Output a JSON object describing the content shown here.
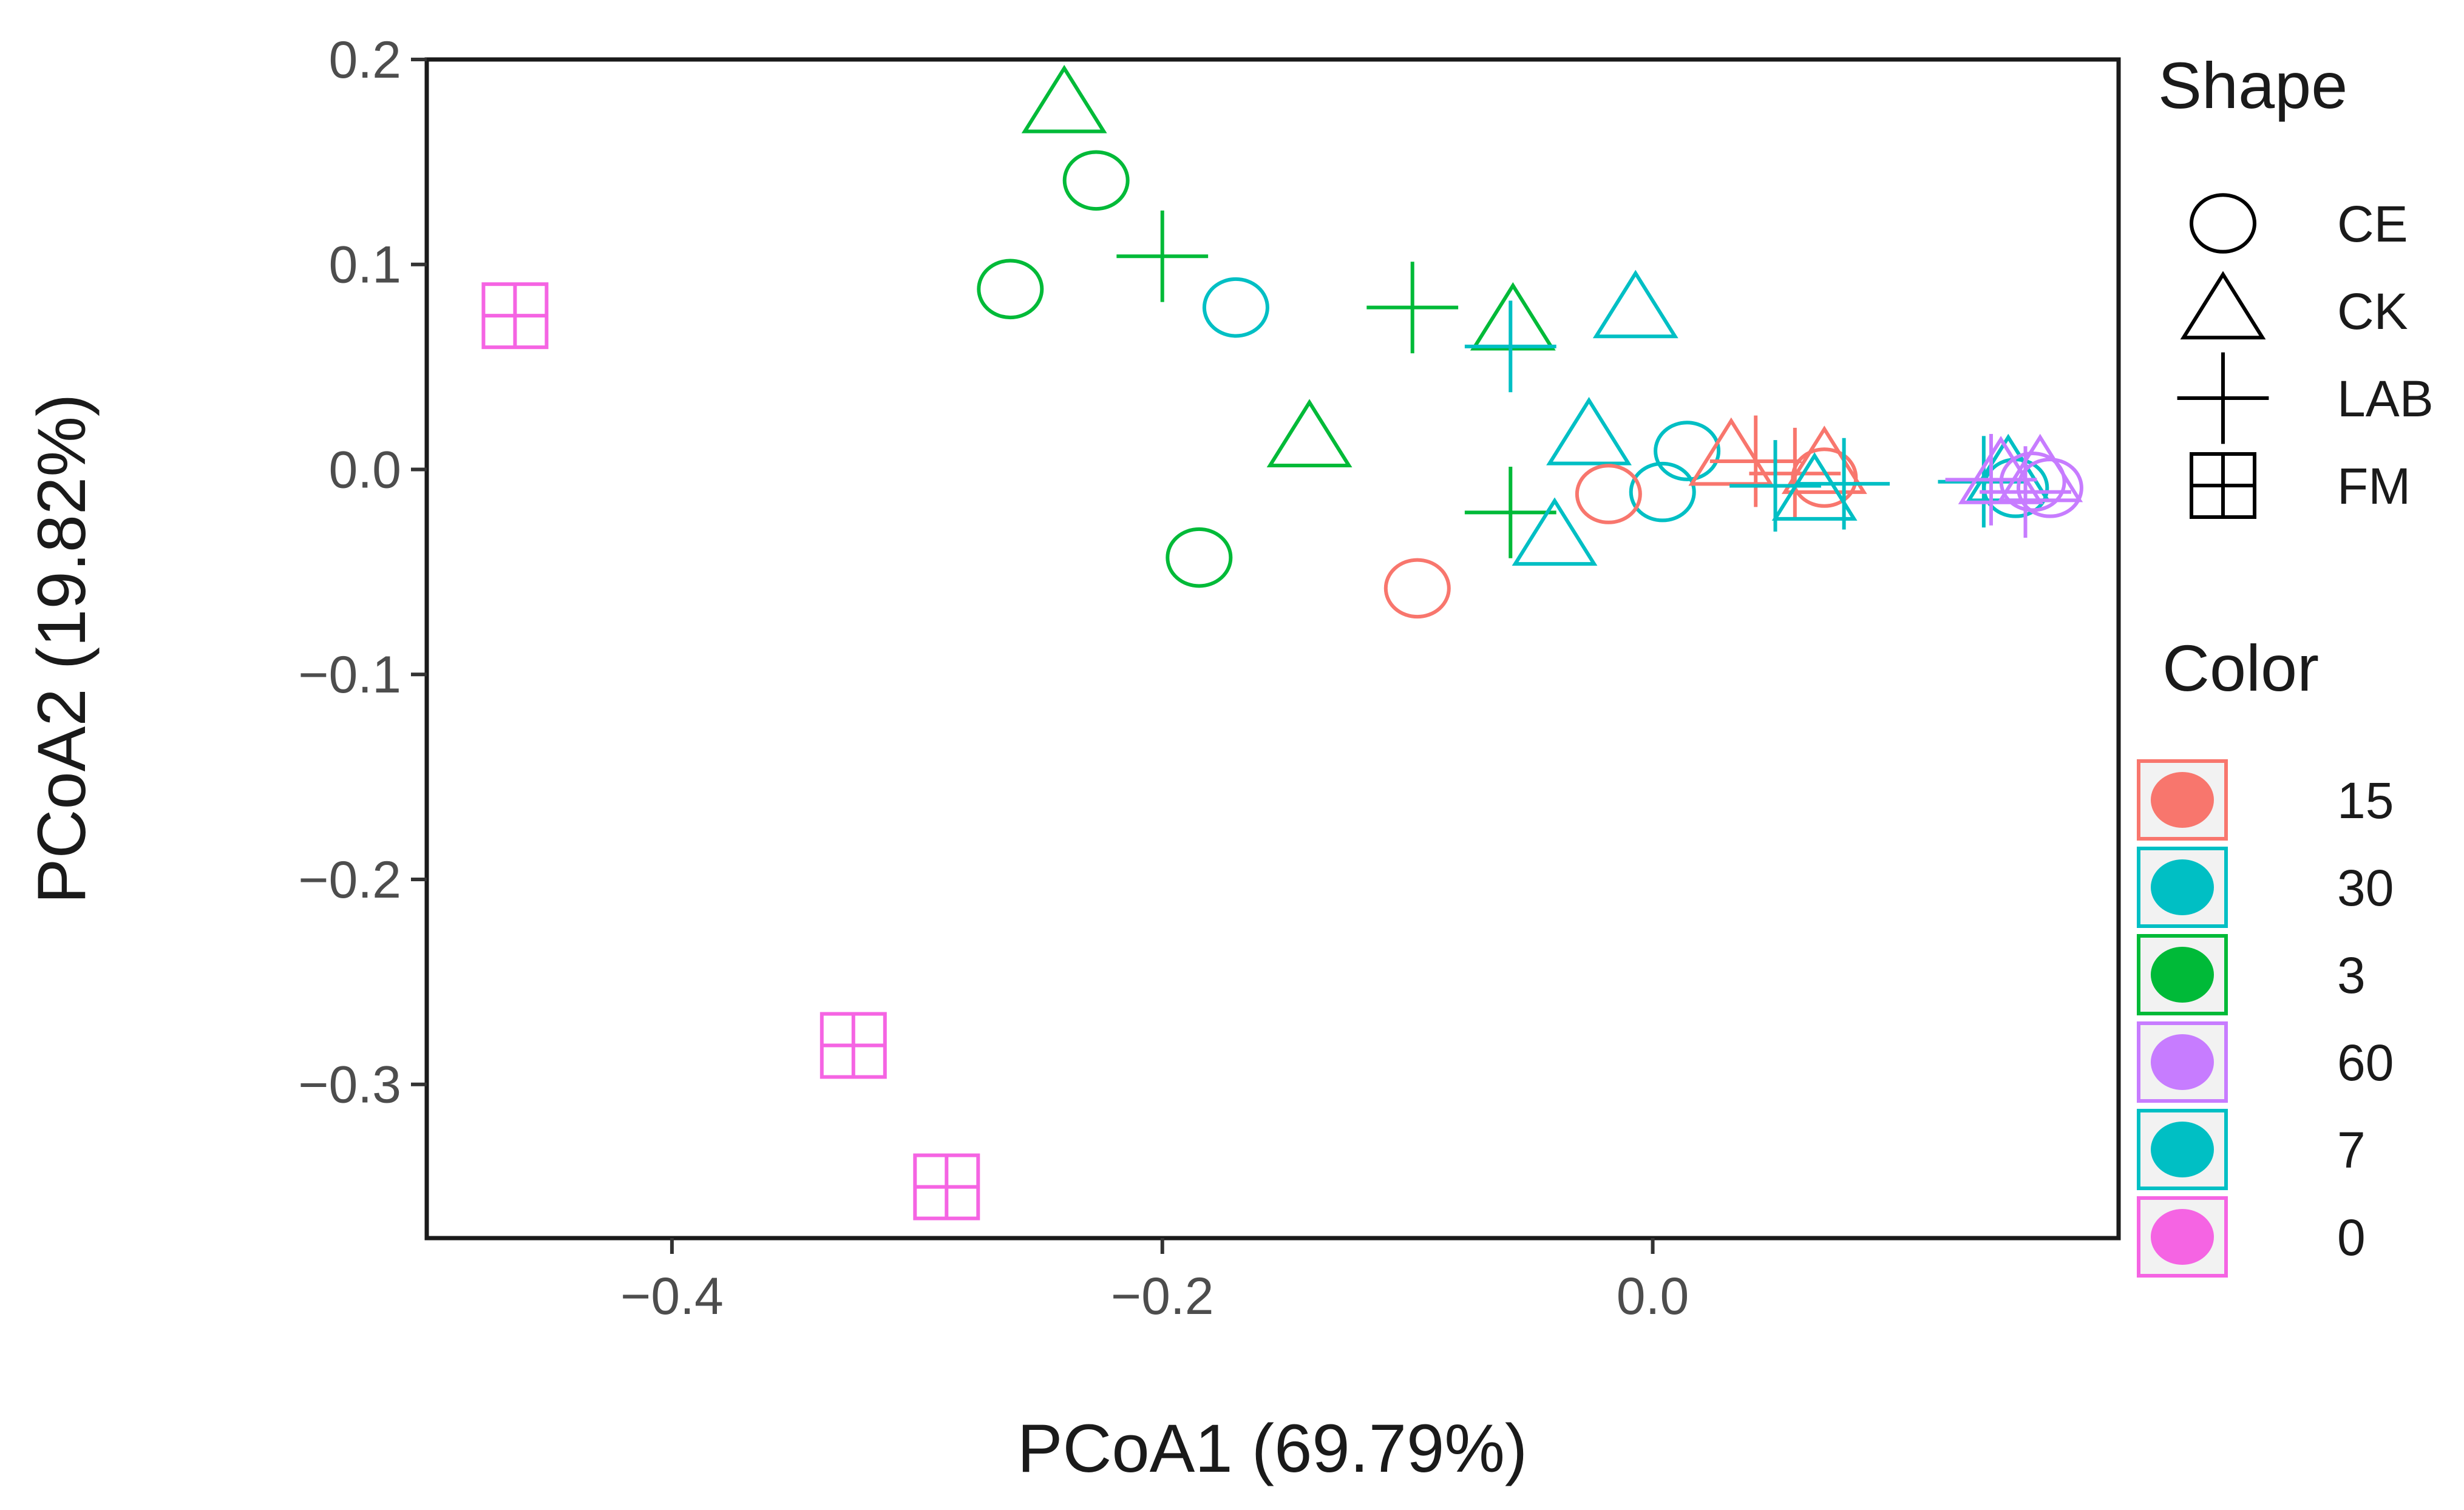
{
  "chart_data": {
    "type": "scatter",
    "title": "",
    "xlabel": "PCoA1 (69.79%)",
    "ylabel": "PCoA2 (19.82%)",
    "xlim": [
      -0.5,
      0.19
    ],
    "ylim": [
      -0.375,
      0.2
    ],
    "xticks": [
      -0.4,
      -0.2,
      0.0
    ],
    "xtick_labels": [
      "−0.4",
      "−0.2",
      "0.0"
    ],
    "yticks": [
      0.2,
      0.1,
      0.0,
      -0.1,
      -0.2,
      -0.3
    ],
    "ytick_labels": [
      "0.2",
      "0.1",
      "0.0",
      "−0.1",
      "−0.2",
      "−0.3"
    ],
    "grid": false,
    "shape_legend": {
      "title": "Shape",
      "entries": [
        {
          "label": "CE",
          "shape": "circle"
        },
        {
          "label": "CK",
          "shape": "triangle"
        },
        {
          "label": "LAB",
          "shape": "plus"
        },
        {
          "label": "FM",
          "shape": "boxplus"
        }
      ]
    },
    "color_legend": {
      "title": "Color",
      "entries": [
        {
          "label": "15",
          "color": "#F8766D"
        },
        {
          "label": "30",
          "color": "#00BFC4"
        },
        {
          "label": "3",
          "color": "#00BA38"
        },
        {
          "label": "60",
          "color": "#C77CFF"
        },
        {
          "label": "7",
          "color": "#00BFC4"
        },
        {
          "label": "0",
          "color": "#F564E3"
        }
      ]
    },
    "points": [
      {
        "x": -0.24,
        "y": 0.178,
        "shape": "triangle",
        "group": "3"
      },
      {
        "x": -0.227,
        "y": 0.141,
        "shape": "circle",
        "group": "3"
      },
      {
        "x": -0.262,
        "y": 0.088,
        "shape": "circle",
        "group": "3"
      },
      {
        "x": -0.2,
        "y": 0.104,
        "shape": "plus",
        "group": "3"
      },
      {
        "x": -0.098,
        "y": 0.079,
        "shape": "plus",
        "group": "3"
      },
      {
        "x": -0.057,
        "y": 0.072,
        "shape": "triangle",
        "group": "3"
      },
      {
        "x": -0.14,
        "y": 0.015,
        "shape": "triangle",
        "group": "3"
      },
      {
        "x": -0.185,
        "y": -0.043,
        "shape": "circle",
        "group": "3"
      },
      {
        "x": -0.058,
        "y": -0.021,
        "shape": "plus",
        "group": "3"
      },
      {
        "x": -0.17,
        "y": 0.079,
        "shape": "circle",
        "group": "30"
      },
      {
        "x": -0.007,
        "y": 0.078,
        "shape": "triangle",
        "group": "30"
      },
      {
        "x": -0.058,
        "y": 0.06,
        "shape": "plus",
        "group": "30"
      },
      {
        "x": -0.026,
        "y": 0.016,
        "shape": "triangle",
        "group": "30"
      },
      {
        "x": 0.014,
        "y": 0.009,
        "shape": "circle",
        "group": "30"
      },
      {
        "x": 0.004,
        "y": -0.011,
        "shape": "circle",
        "group": "30"
      },
      {
        "x": -0.04,
        "y": -0.033,
        "shape": "triangle",
        "group": "30"
      },
      {
        "x": -0.096,
        "y": -0.058,
        "shape": "circle",
        "group": "15"
      },
      {
        "x": -0.018,
        "y": -0.012,
        "shape": "circle",
        "group": "15"
      },
      {
        "x": 0.032,
        "y": 0.006,
        "shape": "triangle",
        "group": "15"
      },
      {
        "x": 0.042,
        "y": 0.004,
        "shape": "plus",
        "group": "15"
      },
      {
        "x": 0.058,
        "y": -0.002,
        "shape": "plus",
        "group": "15"
      },
      {
        "x": 0.07,
        "y": -0.004,
        "shape": "circle",
        "group": "15"
      },
      {
        "x": 0.07,
        "y": 0.002,
        "shape": "triangle",
        "group": "15"
      },
      {
        "x": 0.05,
        "y": -0.008,
        "shape": "plus",
        "group": "7"
      },
      {
        "x": 0.066,
        "y": -0.011,
        "shape": "triangle",
        "group": "7"
      },
      {
        "x": 0.078,
        "y": -0.007,
        "shape": "plus",
        "group": "7"
      },
      {
        "x": 0.135,
        "y": -0.006,
        "shape": "plus",
        "group": "7"
      },
      {
        "x": 0.145,
        "y": -0.002,
        "shape": "triangle",
        "group": "7"
      },
      {
        "x": 0.148,
        "y": -0.009,
        "shape": "circle",
        "group": "7"
      },
      {
        "x": 0.138,
        "y": -0.005,
        "shape": "plus",
        "group": "60"
      },
      {
        "x": 0.142,
        "y": -0.003,
        "shape": "triangle",
        "group": "60"
      },
      {
        "x": 0.152,
        "y": -0.011,
        "shape": "plus",
        "group": "60"
      },
      {
        "x": 0.155,
        "y": -0.006,
        "shape": "circle",
        "group": "60"
      },
      {
        "x": 0.158,
        "y": -0.002,
        "shape": "triangle",
        "group": "60"
      },
      {
        "x": 0.162,
        "y": -0.009,
        "shape": "circle",
        "group": "60"
      },
      {
        "x": -0.464,
        "y": 0.075,
        "shape": "boxplus",
        "group": "0"
      },
      {
        "x": -0.326,
        "y": -0.281,
        "shape": "boxplus",
        "group": "0"
      },
      {
        "x": -0.288,
        "y": -0.35,
        "shape": "boxplus",
        "group": "0"
      }
    ]
  }
}
